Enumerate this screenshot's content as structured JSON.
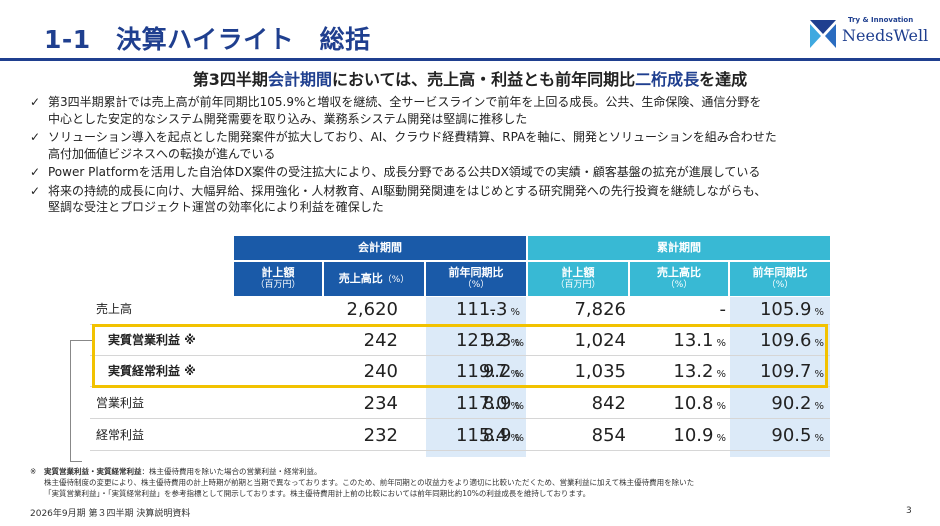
{
  "header": {
    "title": "1-1　決算ハイライト　総括",
    "logo_tag": "Try & Innovation",
    "logo_name": "NeedsWell"
  },
  "subtitle": {
    "part1": "第3四半期",
    "part2": "会計期間",
    "part3": "においては、売上高・利益とも前年同期比",
    "part4": "二桁成長",
    "part5": "を達成"
  },
  "bullets": [
    {
      "check": "✓",
      "line1": "第3四半期累計では売上高が前年同期比105.9%と増収を継続、全サービスラインで前年を上回る成長。公共、生命保険、通信分野を",
      "line2": "中心とした安定的なシステム開発需要を取り込み、業務系システム開発は堅調に推移した"
    },
    {
      "check": "✓",
      "line1": "ソリューション導入を起点とした開発案件が拡大しており、AI、クラウド経費精算、RPAを軸に、開発とソリューションを組み合わせた",
      "line2": "高付加価値ビジネスへの転換が進んでいる"
    },
    {
      "check": "✓",
      "line1": "Power Platformを活用した自治体DX案件の受注拡大により、成長分野である公共DX領域での実績・顧客基盤の拡充が進展している",
      "line2": ""
    },
    {
      "check": "✓",
      "line1": "将来の持続的成長に向け、大幅昇給、採用強化・人材教育、AI駆動開発関連をはじめとする研究開発への先行投資を継続しながらも、",
      "line2": "堅調な受注とプロジェクト運営の効率化により利益を確保した"
    }
  ],
  "table": {
    "group_quarter": "会計期間",
    "group_cumulative": "累計期間",
    "col_amount": "計上額",
    "col_amount_unit": "（百万円）",
    "col_ratio": "売上高比",
    "col_ratio_unit": "（%）",
    "col_yoy": "前年同期比",
    "col_yoy_unit": "（%）",
    "pct": "%",
    "rows": [
      {
        "label": "売上高",
        "q_amount": "2,620",
        "q_ratio": "-",
        "q_yoy": "111.3",
        "c_amount": "7,826",
        "c_ratio": "-",
        "c_yoy": "105.9"
      },
      {
        "label": "実質営業利益 ※",
        "q_amount": "242",
        "q_ratio": "9.3",
        "q_yoy": "121.2",
        "c_amount": "1,024",
        "c_ratio": "13.1",
        "c_yoy": "109.6"
      },
      {
        "label": "実質経常利益 ※",
        "q_amount": "240",
        "q_ratio": "9.2",
        "q_yoy": "119.7",
        "c_amount": "1,035",
        "c_ratio": "13.2",
        "c_yoy": "109.7"
      },
      {
        "label": "営業利益",
        "q_amount": "234",
        "q_ratio": "8.9",
        "q_yoy": "117.0",
        "c_amount": "842",
        "c_ratio": "10.8",
        "c_yoy": "90.2"
      },
      {
        "label": "経常利益",
        "q_amount": "232",
        "q_ratio": "8.9",
        "q_yoy": "115.4",
        "c_amount": "854",
        "c_ratio": "10.9",
        "c_yoy": "90.5"
      }
    ]
  },
  "footnote": {
    "mark": "※",
    "term": "実質営業利益・実質経常利益",
    "line1": "：株主優待費用を除いた場合の営業利益・経常利益。",
    "line2": "株主優待制度の変更により、株主優待費用の計上時期が前期と当期で異なっております。このため、前年同期との収益力をより適切に比較いただくため、営業利益に加えて株主優待費用を除いた",
    "line3": "「実質営業利益」・「実質経常利益」を参考指標として開示しております。株主優待費用計上前の比較においては前年同期比約10%の利益成長を維持しております。"
  },
  "footer": {
    "text": "2026年9月期 第３四半期 決算説明資料",
    "page": "3"
  },
  "colors": {
    "navy": "#1f3f8f",
    "quarter_header": "#1a5aa8",
    "cumulative_header": "#38b9d4",
    "yoy_highlight": "#dceaf8",
    "box": "#f2c200"
  }
}
